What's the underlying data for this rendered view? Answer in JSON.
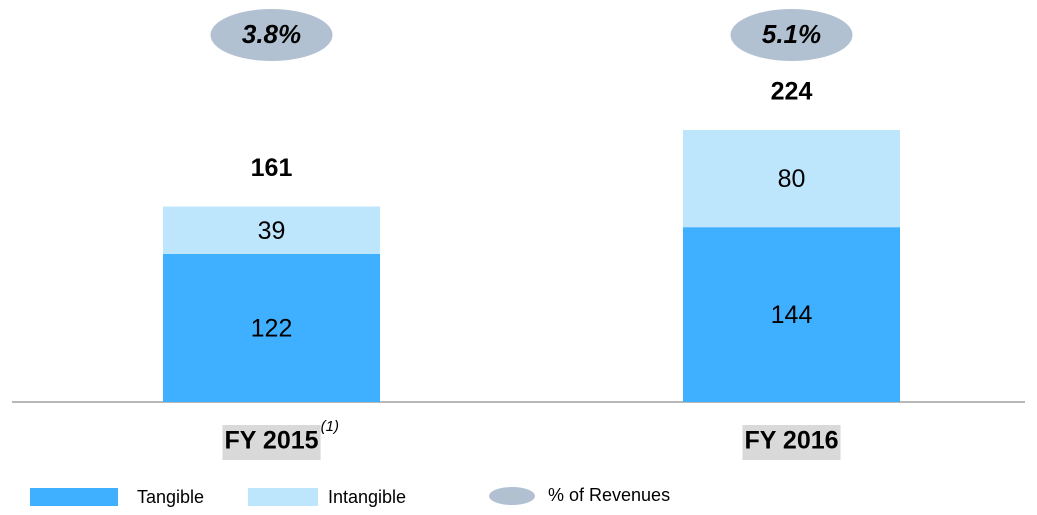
{
  "chart_data": {
    "type": "stacked-bar",
    "categories": [
      "FY 2015",
      "FY 2016"
    ],
    "category_notes": [
      "(1)",
      null
    ],
    "series": [
      {
        "name": "Tangible",
        "color": "#3fb0ff",
        "values": [
          122,
          144
        ]
      },
      {
        "name": "Intangible",
        "color": "#bde5fb",
        "values": [
          39,
          80
        ]
      }
    ],
    "totals": [
      161,
      224
    ],
    "revenue_share": {
      "name": "% of Revenues",
      "color": "#b2c1d1",
      "values": [
        3.8,
        5.1
      ],
      "value_labels": [
        "3.8%",
        "5.1%"
      ]
    }
  }
}
